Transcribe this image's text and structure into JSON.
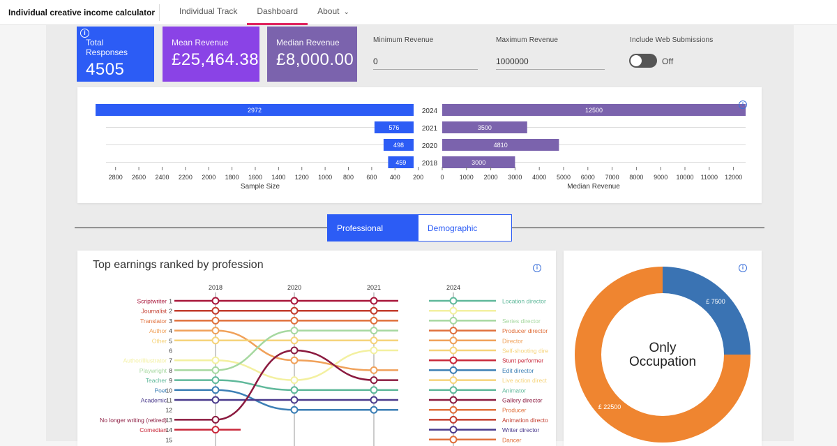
{
  "app": {
    "title": "Individual creative income calculator"
  },
  "nav": [
    {
      "label": "Individual Track",
      "active": false
    },
    {
      "label": "Dashboard",
      "active": true
    },
    {
      "label": "About",
      "active": false
    }
  ],
  "kpis": {
    "total_responses": {
      "label": "Total Responses",
      "value": "4505",
      "color": "#2c5cf5"
    },
    "mean_revenue": {
      "label": "Mean Revenue",
      "value": "£25,464.38",
      "color": "#8a43e6"
    },
    "median_revenue": {
      "label": "Median Revenue",
      "value": "£8,000.00",
      "color": "#7b63ad"
    }
  },
  "filters": {
    "min_revenue": {
      "label": "Minimum Revenue",
      "value": "0"
    },
    "max_revenue": {
      "label": "Maximum Revenue",
      "value": "1000000"
    },
    "web_submissions": {
      "label": "Include Web Submissions",
      "state": "Off"
    }
  },
  "chart_data": [
    {
      "type": "bar",
      "orientation": "horizontal",
      "categories": [
        "2024",
        "2021",
        "2020",
        "2018"
      ],
      "series": [
        {
          "values": [
            2972,
            576,
            498,
            459
          ]
        }
      ],
      "xlabel": "Sample Size",
      "xlim": [
        2900,
        150
      ],
      "ticks": [
        "2800",
        "2600",
        "2400",
        "2200",
        "2000",
        "1800",
        "1600",
        "1400",
        "1200",
        "1000",
        "800",
        "600",
        "400",
        "200"
      ],
      "color": "#2c5cf5"
    },
    {
      "type": "bar",
      "orientation": "horizontal",
      "categories": [
        "2024",
        "2021",
        "2020",
        "2018"
      ],
      "series": [
        {
          "values": [
            12500,
            3500,
            4810,
            3000
          ]
        }
      ],
      "xlabel": "Median Revenue",
      "xlim": [
        0,
        12500
      ],
      "ticks": [
        "0",
        "1000",
        "2000",
        "3000",
        "4000",
        "5000",
        "6000",
        "7000",
        "8000",
        "9000",
        "10000",
        "11000",
        "12000"
      ],
      "color": "#7b63ad"
    },
    {
      "type": "line",
      "subtype": "bump",
      "title": "Top earnings ranked by profession",
      "x": [
        "2018",
        "2020",
        "2021",
        "2024"
      ],
      "ranks": [
        "1",
        "2",
        "3",
        "4",
        "5",
        "6",
        "7",
        "8",
        "9",
        "10",
        "11",
        "12",
        "13",
        "14",
        "15"
      ],
      "left_labels": [
        {
          "rank": 1,
          "label": "Scriptwriter",
          "color": "#a8163a"
        },
        {
          "rank": 2,
          "label": "Journalist",
          "color": "#c33d2e"
        },
        {
          "rank": 3,
          "label": "Translator",
          "color": "#e0703c"
        },
        {
          "rank": 4,
          "label": "Author",
          "color": "#f0a15a"
        },
        {
          "rank": 5,
          "label": "Other",
          "color": "#f6d37a"
        },
        {
          "rank": 7,
          "label": "Author/Illustrator",
          "color": "#f3f0a0"
        },
        {
          "rank": 8,
          "label": "Playwright",
          "color": "#a6d8a0"
        },
        {
          "rank": 9,
          "label": "Teacher",
          "color": "#5fb89a"
        },
        {
          "rank": 10,
          "label": "Poet",
          "color": "#3c7fb5"
        },
        {
          "rank": 11,
          "label": "Academic",
          "color": "#4a3a8c"
        },
        {
          "rank": 13,
          "label": "No longer writing (retired)",
          "color": "#8b1a3f"
        },
        {
          "rank": 14,
          "label": "Comedian",
          "color": "#c9283a"
        }
      ],
      "right_labels": [
        {
          "rank": 1,
          "label": "Location director",
          "color": "#5fb89a"
        },
        {
          "rank": 2,
          "label": "",
          "color": "#f3f0a0"
        },
        {
          "rank": 3,
          "label": "Series director",
          "color": "#a6d8a0"
        },
        {
          "rank": 4,
          "label": "Producer director",
          "color": "#e0703c"
        },
        {
          "rank": 5,
          "label": "Director",
          "color": "#f0a15a"
        },
        {
          "rank": 6,
          "label": "Self-shooting dire",
          "color": "#f6d37a"
        },
        {
          "rank": 7,
          "label": "Stunt performer",
          "color": "#c9283a"
        },
        {
          "rank": 8,
          "label": "Edit director",
          "color": "#3c7fb5"
        },
        {
          "rank": 9,
          "label": "Live action direct",
          "color": "#f6d37a"
        },
        {
          "rank": 10,
          "label": "Animator",
          "color": "#5fb89a"
        },
        {
          "rank": 11,
          "label": "Gallery director",
          "color": "#8b1a3f"
        },
        {
          "rank": 12,
          "label": "Producer",
          "color": "#e0703c"
        },
        {
          "rank": 13,
          "label": "Animation directo",
          "color": "#c33d2e"
        },
        {
          "rank": 14,
          "label": "Writer director",
          "color": "#4a3a8c"
        },
        {
          "rank": 15,
          "label": "Dancer",
          "color": "#e0703c"
        }
      ],
      "series": [
        {
          "ranks": [
            1,
            1,
            1
          ],
          "color": "#a8163a"
        },
        {
          "ranks": [
            2,
            2,
            2
          ],
          "color": "#c33d2e"
        },
        {
          "ranks": [
            3,
            3,
            3
          ],
          "color": "#e0703c"
        },
        {
          "ranks": [
            4,
            7,
            8
          ],
          "color": "#f0a15a"
        },
        {
          "ranks": [
            5,
            5,
            5
          ],
          "color": "#f6d37a"
        },
        {
          "ranks": [
            7,
            9,
            6
          ],
          "color": "#f3f0a0"
        },
        {
          "ranks": [
            8,
            4,
            4
          ],
          "color": "#a6d8a0"
        },
        {
          "ranks": [
            9,
            10,
            10
          ],
          "color": "#5fb89a"
        },
        {
          "ranks": [
            10,
            12,
            12
          ],
          "color": "#3c7fb5"
        },
        {
          "ranks": [
            11,
            11,
            11
          ],
          "color": "#4a3a8c"
        },
        {
          "ranks": [
            13,
            6,
            9
          ],
          "color": "#8b1a3f"
        },
        {
          "ranks": [
            14,
            null,
            null
          ],
          "color": "#c9283a"
        }
      ]
    },
    {
      "type": "pie",
      "subtype": "donut",
      "center_label": [
        "Only",
        "Occupation"
      ],
      "slices": [
        {
          "label": "£ 7500",
          "value": 7500,
          "color": "#3a73b3"
        },
        {
          "label": "£ 22500",
          "value": 22500,
          "color": "#ef8530"
        }
      ]
    }
  ],
  "tabs": [
    {
      "label": "Professional",
      "active": true
    },
    {
      "label": "Demographic",
      "active": false
    }
  ],
  "colors": {
    "accent": "#2c5cf5",
    "nav_underline": "#e0245e",
    "purple": "#7b63ad"
  }
}
